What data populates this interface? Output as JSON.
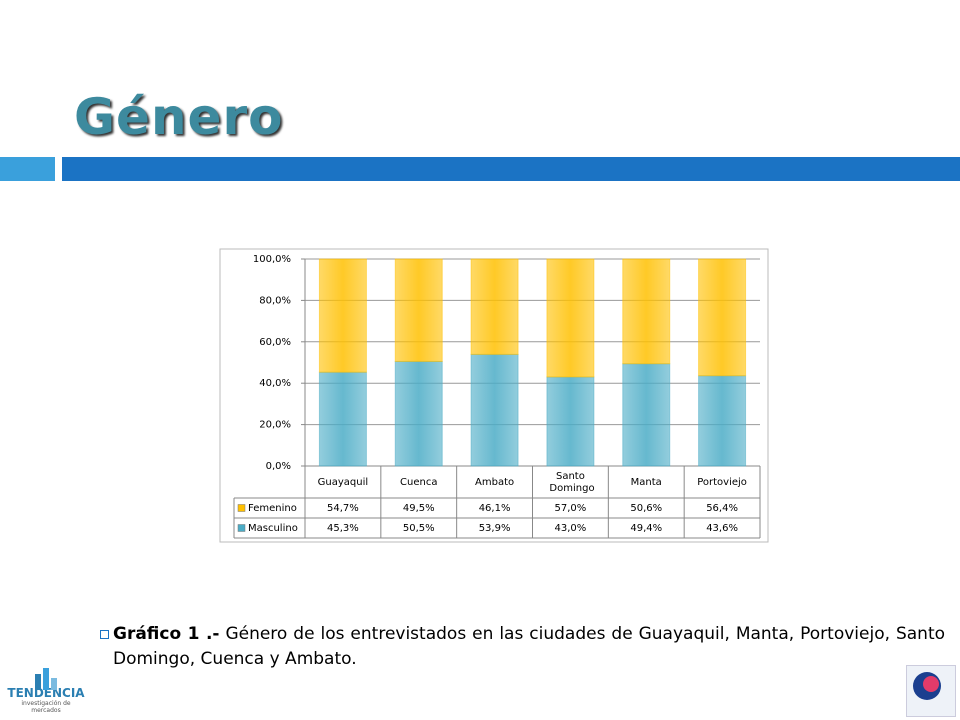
{
  "title": "Género",
  "chart_data": {
    "type": "bar",
    "stacked": true,
    "categories": [
      "Guayaquil",
      "Cuenca",
      "Ambato",
      "Santo Domingo",
      "Manta",
      "Portoviejo"
    ],
    "series": [
      {
        "name": "Femenino",
        "color": "#ffc000",
        "values": [
          54.7,
          49.5,
          46.1,
          57.0,
          50.6,
          56.4
        ],
        "value_labels": [
          "54,7%",
          "49,5%",
          "46,1%",
          "57,0%",
          "50,6%",
          "56,4%"
        ]
      },
      {
        "name": "Masculino",
        "color": "#4bacc6",
        "values": [
          45.3,
          50.5,
          53.9,
          43.0,
          49.4,
          43.6
        ],
        "value_labels": [
          "45,3%",
          "50,5%",
          "53,9%",
          "43,0%",
          "49,4%",
          "43,6%"
        ]
      }
    ],
    "ylim": [
      0,
      100
    ],
    "yticks": [
      {
        "value": 0,
        "label": "0,0%"
      },
      {
        "value": 20,
        "label": "20,0%"
      },
      {
        "value": 40,
        "label": "40,0%"
      },
      {
        "value": 60,
        "label": "60,0%"
      },
      {
        "value": 80,
        "label": "80,0%"
      },
      {
        "value": 100,
        "label": "100,0%"
      }
    ],
    "grid": true
  },
  "caption": {
    "label": "Gráfico 1 .-",
    "text": "Género de los entrevistados en las ciudades de Guayaquil, Manta, Portoviejo, Santo Domingo, Cuenca y Ambato."
  },
  "logo": {
    "name": "TENDENCIA",
    "tagline": "investigación de mercados"
  }
}
